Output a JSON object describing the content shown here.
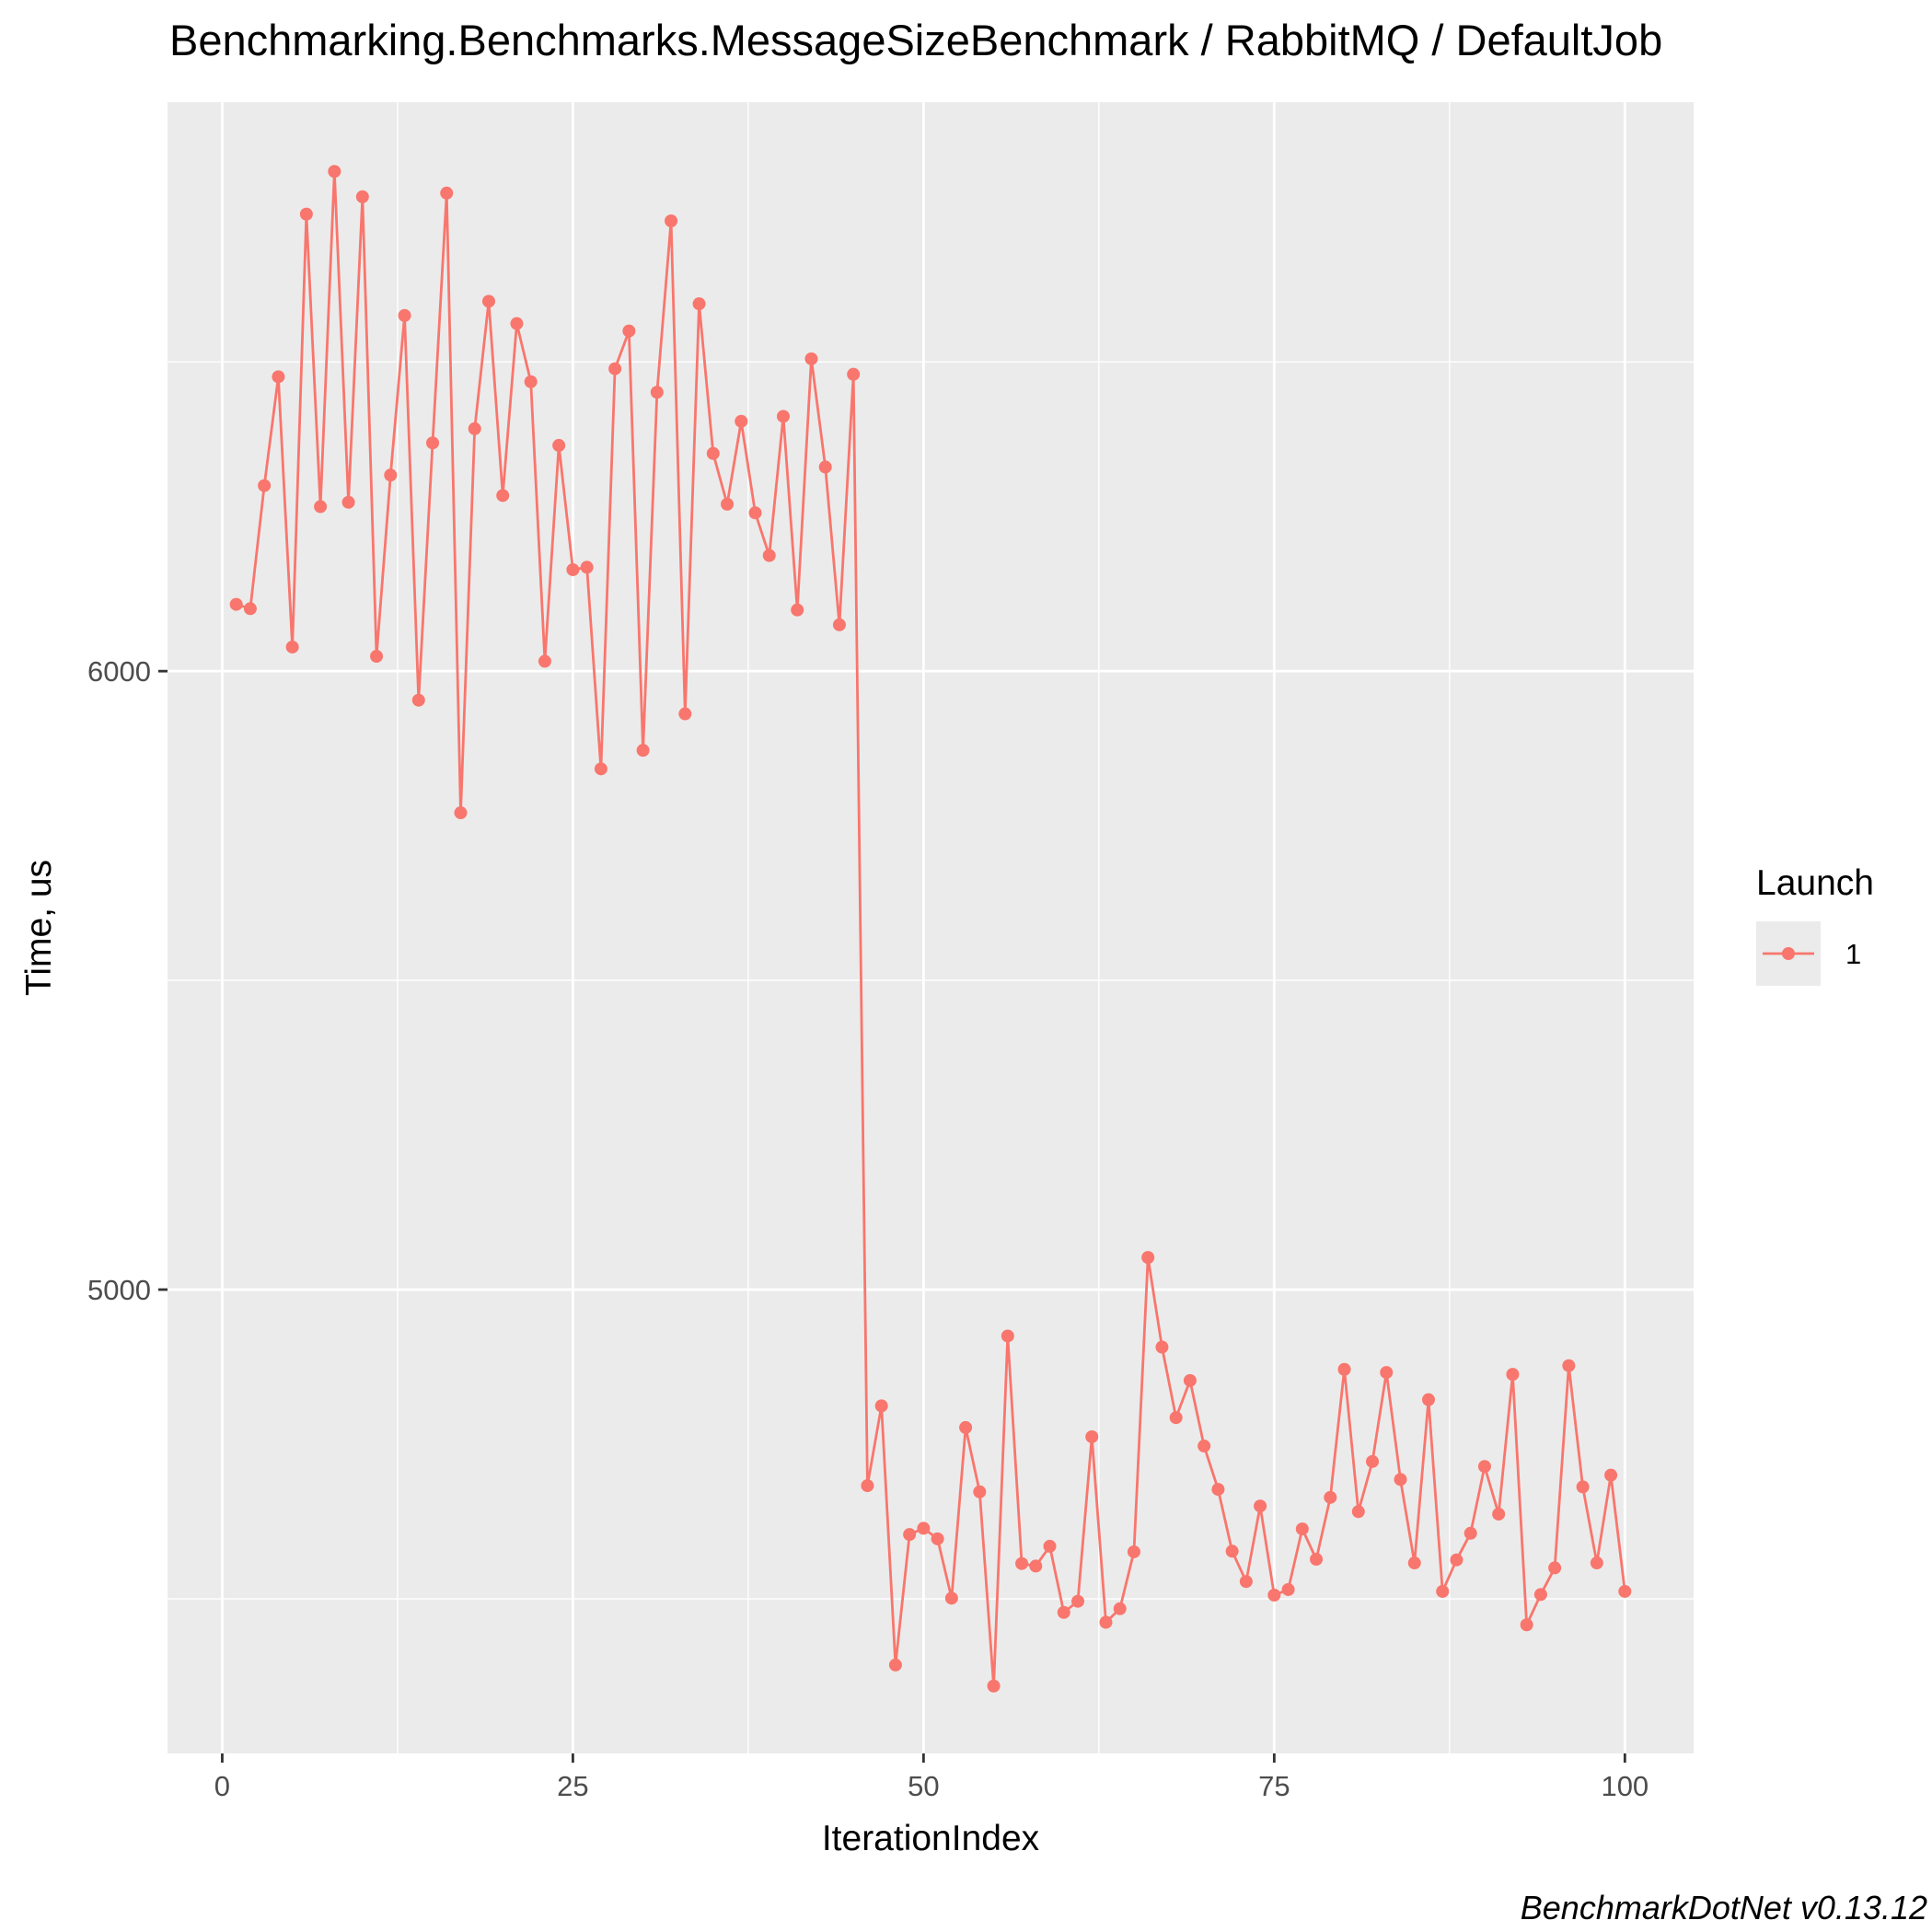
{
  "chart_data": {
    "type": "line",
    "title": "Benchmarking.Benchmarks.MessageSizeBenchmark / RabbitMQ / DefaultJob",
    "xlabel": "IterationIndex",
    "ylabel": "Time, us",
    "xlim": [
      -3.9,
      104.9
    ],
    "ylim": [
      4250,
      6920
    ],
    "x_ticks": [
      0,
      25,
      50,
      75,
      100
    ],
    "y_ticks": [
      5000,
      6000
    ],
    "x_tick_labels": [
      "0",
      "25",
      "50",
      "75",
      "100"
    ],
    "y_tick_labels": [
      "5000",
      "6000"
    ],
    "grid": true,
    "legend": {
      "title": "Launch",
      "position": "right"
    },
    "caption": "BenchmarkDotNet v0.13.12",
    "series": [
      {
        "name": "1",
        "color": "#F8766D",
        "x": [
          1,
          2,
          3,
          4,
          5,
          6,
          7,
          8,
          9,
          10,
          11,
          12,
          13,
          14,
          15,
          16,
          17,
          18,
          19,
          20,
          21,
          22,
          23,
          24,
          25,
          26,
          27,
          28,
          29,
          30,
          31,
          32,
          33,
          34,
          35,
          36,
          37,
          38,
          39,
          40,
          41,
          42,
          43,
          44,
          45,
          46,
          47,
          48,
          49,
          50,
          51,
          52,
          53,
          54,
          55,
          56,
          57,
          58,
          59,
          60,
          61,
          62,
          63,
          64,
          65,
          66,
          67,
          68,
          69,
          70,
          71,
          72,
          73,
          74,
          75,
          76,
          77,
          78,
          79,
          80,
          81,
          82,
          83,
          84,
          85,
          86,
          87,
          88,
          89,
          90,
          91,
          92,
          93,
          94,
          95,
          96,
          97,
          98,
          99,
          100
        ],
        "y": [
          6108,
          6101,
          6300,
          6476,
          6039,
          6739,
          6266,
          6808,
          6273,
          6767,
          6024,
          6317,
          6575,
          5953,
          6369,
          6773,
          5771,
          6392,
          6598,
          6284,
          6562,
          6468,
          6016,
          6365,
          6164,
          6168,
          5842,
          6489,
          6550,
          5872,
          6451,
          6728,
          5931,
          6594,
          6352,
          6270,
          6404,
          6256,
          6187,
          6412,
          6099,
          6505,
          6330,
          6075,
          6480,
          4683,
          4812,
          4393,
          4604,
          4614,
          4597,
          4501,
          4777,
          4673,
          4359,
          4925,
          4557,
          4553,
          4585,
          4478,
          4496,
          4762,
          4462,
          4484,
          4576,
          5052,
          4907,
          4793,
          4853,
          4747,
          4677,
          4577,
          4528,
          4650,
          4506,
          4515,
          4613,
          4564,
          4664,
          4871,
          4641,
          4722,
          4866,
          4693,
          4558,
          4822,
          4512,
          4563,
          4606,
          4714,
          4637,
          4863,
          4458,
          4507,
          4550,
          4877,
          4681,
          4558,
          4700,
          4512
        ]
      }
    ]
  }
}
